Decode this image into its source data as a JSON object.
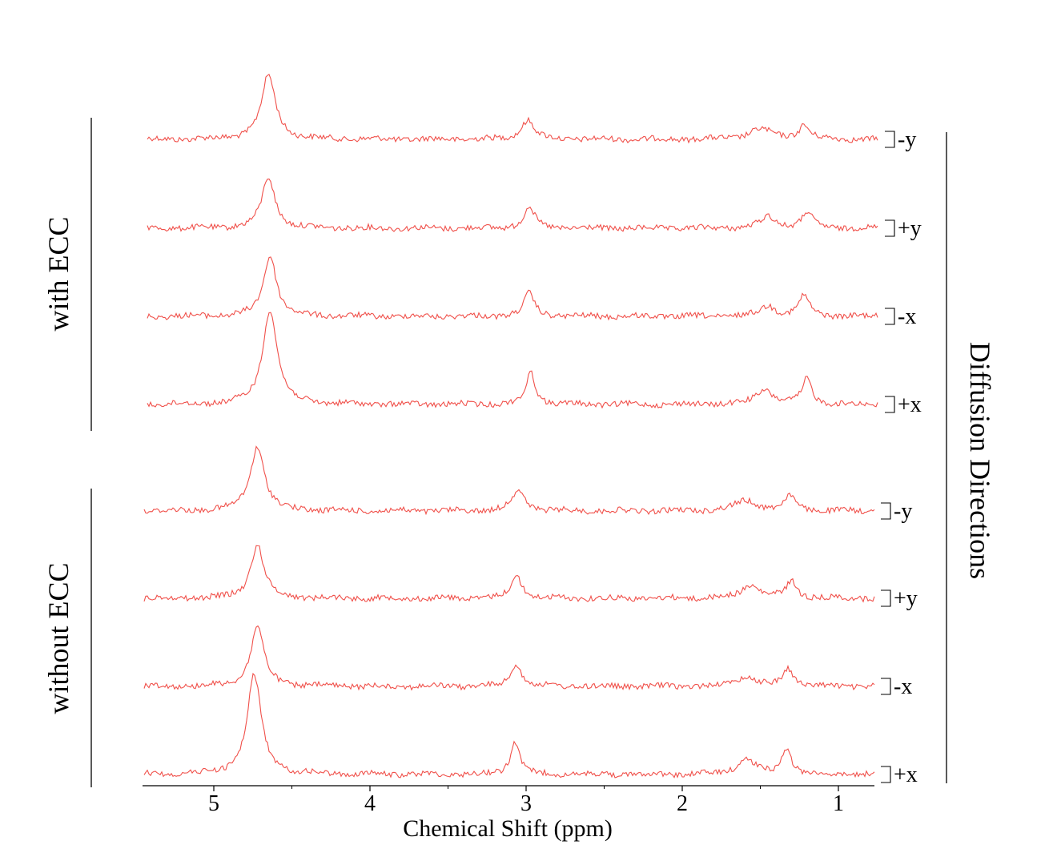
{
  "chart_data": {
    "type": "line",
    "xlabel": "Chemical Shift (ppm)",
    "xlim": [
      5.5,
      0.8
    ],
    "x_reversed": true,
    "x_ticks": [
      "5",
      "4",
      "3",
      "2",
      "1"
    ],
    "x_tick_values": [
      5,
      4,
      3,
      2,
      1
    ],
    "groups": [
      {
        "label": "with ECC",
        "series_range": [
          0,
          3
        ]
      },
      {
        "label": "without ECC",
        "series_range": [
          4,
          7
        ]
      }
    ],
    "right_label": "Diffusion Directions",
    "line_color": "#f0504a",
    "series": [
      {
        "name": "-y",
        "group": "with ECC",
        "shift": 0.0,
        "peaks": [
          [
            4.65,
            1.0,
            0.055
          ],
          [
            2.99,
            0.3,
            0.05
          ],
          [
            1.5,
            0.16,
            0.09
          ],
          [
            1.22,
            0.22,
            0.04
          ]
        ]
      },
      {
        "name": "+y",
        "group": "with ECC",
        "shift": 0.0,
        "peaks": [
          [
            4.65,
            0.8,
            0.05
          ],
          [
            2.98,
            0.34,
            0.04
          ],
          [
            1.45,
            0.18,
            0.06
          ],
          [
            1.2,
            0.25,
            0.04
          ]
        ]
      },
      {
        "name": "-x",
        "group": "with ECC",
        "shift": 0.0,
        "peaks": [
          [
            4.64,
            0.95,
            0.05
          ],
          [
            2.98,
            0.36,
            0.04
          ],
          [
            1.45,
            0.16,
            0.06
          ],
          [
            1.22,
            0.32,
            0.04
          ]
        ]
      },
      {
        "name": "+x",
        "group": "with ECC",
        "shift": 0.0,
        "peaks": [
          [
            4.64,
            1.5,
            0.055
          ],
          [
            2.97,
            0.5,
            0.035
          ],
          [
            1.47,
            0.22,
            0.07
          ],
          [
            1.2,
            0.4,
            0.035
          ]
        ]
      },
      {
        "name": "-y",
        "group": "without ECC",
        "shift": 0.0,
        "peaks": [
          [
            4.68,
            1.0,
            0.055
          ],
          [
            3.01,
            0.32,
            0.05
          ],
          [
            1.55,
            0.16,
            0.09
          ],
          [
            1.27,
            0.24,
            0.04
          ]
        ]
      },
      {
        "name": "+y",
        "group": "without ECC",
        "shift": 0.0,
        "peaks": [
          [
            4.68,
            0.85,
            0.05
          ],
          [
            3.02,
            0.36,
            0.04
          ],
          [
            1.52,
            0.2,
            0.07
          ],
          [
            1.26,
            0.26,
            0.04
          ]
        ]
      },
      {
        "name": "-x",
        "group": "without ECC",
        "shift": 0.0,
        "peaks": [
          [
            4.68,
            0.95,
            0.05
          ],
          [
            3.02,
            0.36,
            0.04
          ],
          [
            1.55,
            0.16,
            0.07
          ],
          [
            1.28,
            0.28,
            0.04
          ]
        ]
      },
      {
        "name": "+x",
        "group": "without ECC",
        "shift": 0.0,
        "peaks": [
          [
            4.7,
            1.55,
            0.055
          ],
          [
            3.03,
            0.52,
            0.035
          ],
          [
            1.55,
            0.24,
            0.07
          ],
          [
            1.29,
            0.42,
            0.035
          ]
        ]
      }
    ]
  }
}
